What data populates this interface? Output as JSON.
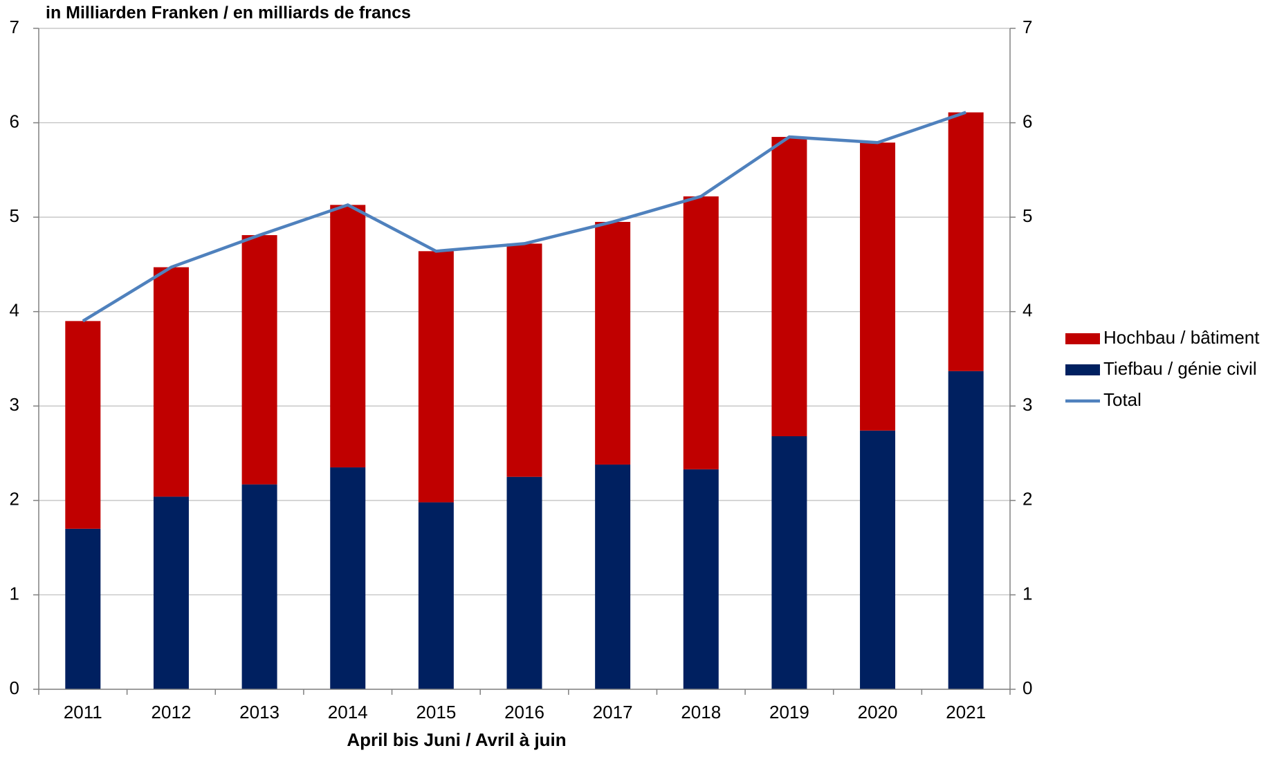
{
  "chart_data": {
    "type": "bar",
    "title": "in Milliarden Franken / en milliards de francs",
    "x_label": "April bis Juni / Avril à juin",
    "categories": [
      "2011",
      "2012",
      "2013",
      "2014",
      "2015",
      "2016",
      "2017",
      "2018",
      "2019",
      "2020",
      "2021"
    ],
    "stacked": true,
    "series": [
      {
        "name": "Tiefbau / génie civil",
        "color": "#002060",
        "values": [
          1.7,
          2.04,
          2.17,
          2.35,
          1.98,
          2.25,
          2.38,
          2.33,
          2.68,
          2.74,
          3.37
        ]
      },
      {
        "name": "Hochbau / bâtiment",
        "color": "#c00000",
        "values": [
          2.2,
          2.43,
          2.64,
          2.78,
          2.66,
          2.47,
          2.57,
          2.89,
          3.17,
          3.05,
          2.74
        ]
      },
      {
        "name": "Total",
        "color": "#4f81bd",
        "type": "line",
        "axis": "y2",
        "values": [
          3.9,
          4.47,
          4.81,
          5.13,
          4.64,
          4.72,
          4.95,
          5.22,
          5.85,
          5.79,
          6.11
        ]
      }
    ],
    "legend_order": [
      1,
      0,
      2
    ],
    "ylim": [
      0,
      7
    ],
    "yticks": [
      0,
      1,
      2,
      3,
      4,
      5,
      6,
      7
    ],
    "y2lim": [
      0,
      7
    ],
    "y2ticks": [
      0,
      1,
      2,
      3,
      4,
      5,
      6,
      7
    ],
    "grid": true,
    "legend": "right"
  }
}
